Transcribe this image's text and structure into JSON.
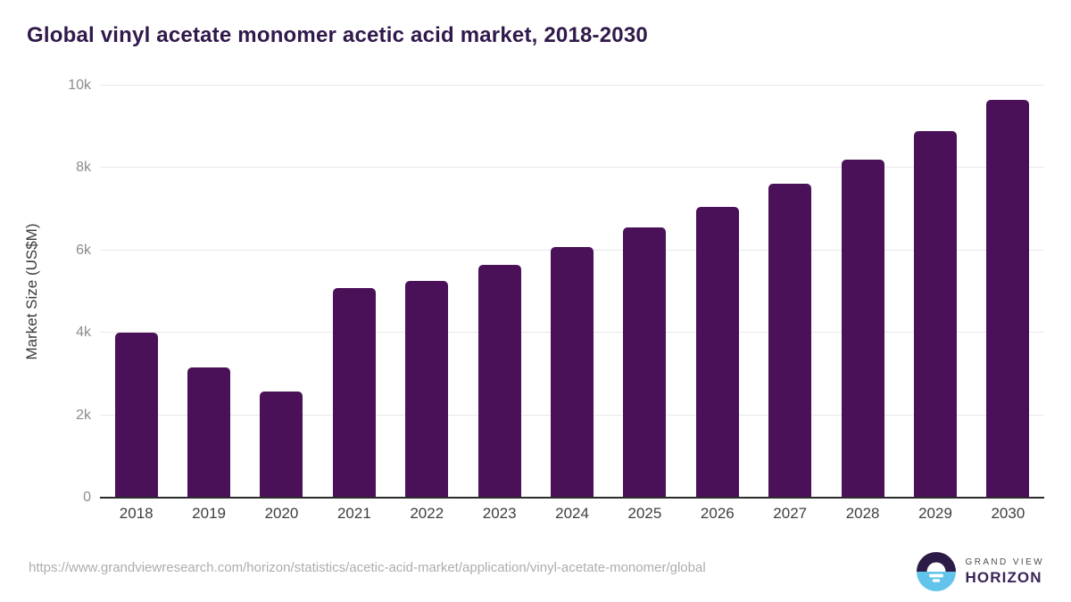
{
  "title": "Global vinyl acetate monomer acetic acid market, 2018-2030",
  "chart_data": {
    "type": "bar",
    "categories": [
      "2018",
      "2019",
      "2020",
      "2021",
      "2022",
      "2023",
      "2024",
      "2025",
      "2026",
      "2027",
      "2028",
      "2029",
      "2030"
    ],
    "values": [
      4000,
      3160,
      2570,
      5090,
      5270,
      5650,
      6090,
      6560,
      7060,
      7610,
      8210,
      8900,
      9650
    ],
    "title": "Global vinyl acetate monomer acetic acid market, 2018-2030",
    "xlabel": "",
    "ylabel": "Market Size (US$M)",
    "ylim": [
      0,
      10000
    ],
    "yticks": [
      {
        "label": "10k",
        "value": 10000
      },
      {
        "label": "8k",
        "value": 8000
      },
      {
        "label": "6k",
        "value": 6000
      },
      {
        "label": "4k",
        "value": 4000
      },
      {
        "label": "2k",
        "value": 2000
      },
      {
        "label": "0",
        "value": 0
      }
    ],
    "grid": "horizontal",
    "legend": "none",
    "bar_color": "#4a1158"
  },
  "footer": {
    "source_url": "https://www.grandviewresearch.com/horizon/statistics/acetic-acid-market/application/vinyl-acetate-monomer/global",
    "logo": {
      "line1": "GRAND VIEW",
      "line2": "HORIZON"
    }
  },
  "colors": {
    "bar": "#4a1158",
    "title_text": "#30194b",
    "axis_tick_text": "#8b8b8b",
    "gridline": "#e8e8e8",
    "zero_line": "#2b2b2b",
    "source_url_text": "#adadad",
    "logo_dark": "#2d1b47",
    "logo_blue": "#63c4eb"
  }
}
